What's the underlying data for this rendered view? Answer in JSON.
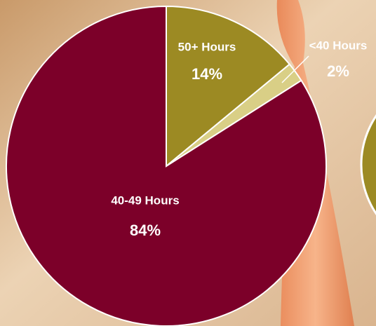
{
  "chart_data": {
    "type": "pie",
    "categories": [
      "50+ Hours",
      "<40 Hours",
      "40-49 Hours"
    ],
    "values": [
      14,
      2,
      84
    ],
    "value_labels": [
      "14%",
      "2%",
      "84%"
    ],
    "colors": [
      "#9c8a23",
      "#d9cf86",
      "#7c0029"
    ]
  }
}
